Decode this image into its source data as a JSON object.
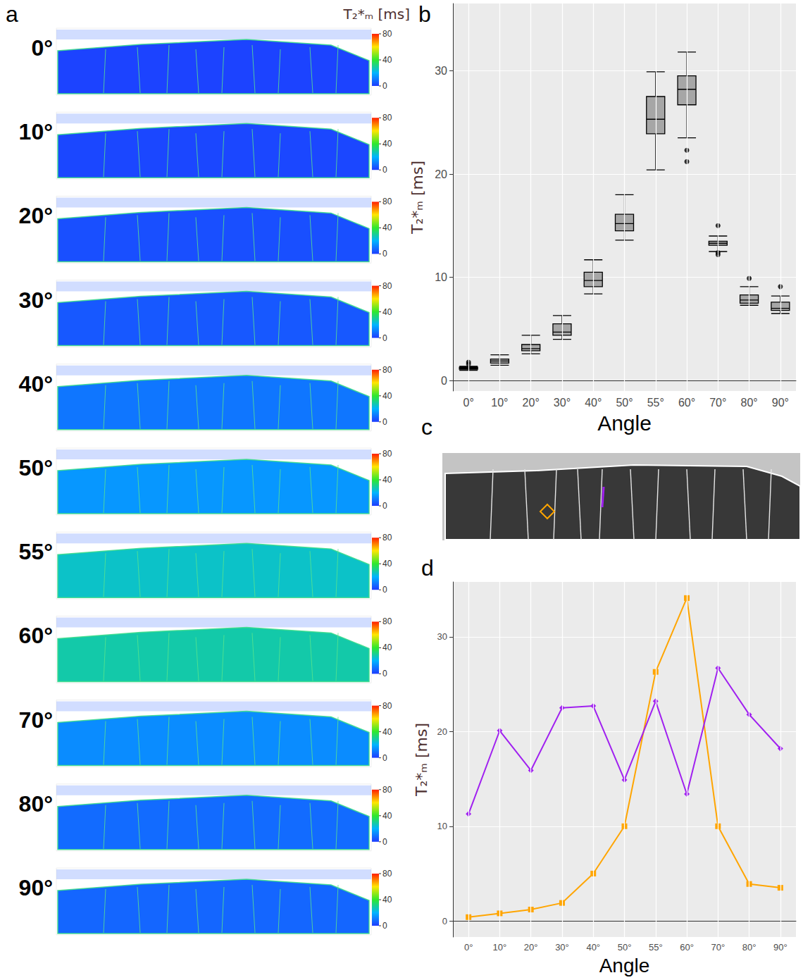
{
  "chart_data": [
    {
      "label": "a",
      "type": "image_maps",
      "rows": [
        "0°",
        "10°",
        "20°",
        "30°",
        "40°",
        "50°",
        "55°",
        "60°",
        "70°",
        "80°",
        "90°"
      ],
      "colorbar": {
        "title": "T₂*ₘ [ms]",
        "range": [
          0,
          80
        ],
        "ticks": [
          0,
          40,
          80
        ]
      }
    },
    {
      "label": "b",
      "type": "boxplot",
      "categories": [
        "0°",
        "10°",
        "20°",
        "30°",
        "40°",
        "50°",
        "55°",
        "60°",
        "70°",
        "80°",
        "90°"
      ],
      "values": [
        [
          1.0,
          1.1,
          1.2,
          1.3,
          1.4
        ],
        [
          1.5,
          1.7,
          1.9,
          2.1,
          2.5
        ],
        [
          2.6,
          2.9,
          3.1,
          3.5,
          4.4
        ],
        [
          4.0,
          4.4,
          4.7,
          5.5,
          6.3
        ],
        [
          8.4,
          9.1,
          9.7,
          10.5,
          11.7
        ],
        [
          13.6,
          14.5,
          15.2,
          16.1,
          18.0
        ],
        [
          20.4,
          23.9,
          25.3,
          27.5,
          29.9
        ],
        [
          23.5,
          26.7,
          28.2,
          29.5,
          31.8
        ],
        [
          12.5,
          13.1,
          13.3,
          13.5,
          14.0
        ],
        [
          7.3,
          7.5,
          7.8,
          8.3,
          9.1
        ],
        [
          6.5,
          6.8,
          7.0,
          7.6,
          8.2
        ]
      ],
      "outliers": [
        [
          1.6,
          1.8
        ],
        [],
        [],
        [],
        [],
        [],
        [],
        [
          22.3,
          21.2
        ],
        [
          15.0,
          12.2,
          12.4
        ],
        [
          9.9
        ],
        [
          9.1
        ]
      ],
      "color": "#a6a6a6",
      "x_label": "Angle",
      "y_label": "T₂*ₘ [ms]",
      "ylim": [
        -1,
        36.5
      ],
      "yticks": [
        0,
        10,
        20,
        30
      ],
      "grid": true
    },
    {
      "label": "c",
      "type": "image"
    },
    {
      "label": "d",
      "type": "line",
      "categories": [
        "0°",
        "10°",
        "20°",
        "30°",
        "40°",
        "50°",
        "55°",
        "60°",
        "70°",
        "80°",
        "90°"
      ],
      "series": [
        {
          "color": "#ffa500",
          "marker": "square",
          "values": [
            0.4,
            0.8,
            1.2,
            1.9,
            5.0,
            10.0,
            26.3,
            34.1,
            10.0,
            3.9,
            3.5
          ]
        },
        {
          "color": "#a020f0",
          "marker": "diamond",
          "values": [
            11.3,
            20.1,
            15.9,
            22.5,
            22.7,
            14.9,
            23.2,
            13.4,
            26.7,
            21.8,
            18.2
          ]
        }
      ],
      "x_label": "Angle",
      "y_label": "T₂*ₘ [ms]",
      "ylim": [
        -1.7,
        35.8
      ],
      "yticks": [
        0,
        10,
        20,
        30
      ],
      "grid": true
    }
  ]
}
